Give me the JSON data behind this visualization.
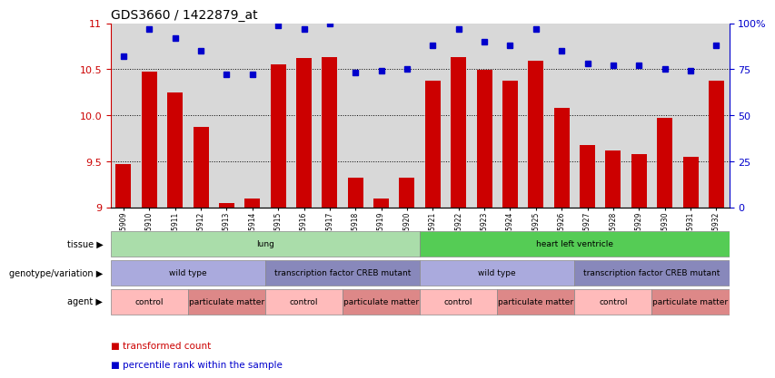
{
  "title": "GDS3660 / 1422879_at",
  "samples": [
    "GSM435909",
    "GSM435910",
    "GSM435911",
    "GSM435912",
    "GSM435913",
    "GSM435914",
    "GSM435915",
    "GSM435916",
    "GSM435917",
    "GSM435918",
    "GSM435919",
    "GSM435920",
    "GSM435921",
    "GSM435922",
    "GSM435923",
    "GSM435924",
    "GSM435925",
    "GSM435926",
    "GSM435927",
    "GSM435928",
    "GSM435929",
    "GSM435930",
    "GSM435931",
    "GSM435932"
  ],
  "bar_values": [
    9.47,
    10.47,
    10.25,
    9.87,
    9.04,
    9.09,
    10.55,
    10.62,
    10.63,
    9.32,
    9.09,
    9.32,
    10.38,
    10.63,
    10.49,
    10.38,
    10.59,
    10.08,
    9.68,
    9.62,
    9.58,
    9.97,
    9.55,
    10.38
  ],
  "blue_values": [
    82,
    97,
    92,
    85,
    72,
    72,
    99,
    97,
    100,
    73,
    74,
    75,
    88,
    97,
    90,
    88,
    97,
    85,
    78,
    77,
    77,
    75,
    74,
    88
  ],
  "ylim": [
    9.0,
    11.0
  ],
  "yticks": [
    9.0,
    9.5,
    10.0,
    10.5,
    11.0
  ],
  "right_yticks": [
    0,
    25,
    50,
    75,
    100
  ],
  "bar_color": "#cc0000",
  "blue_color": "#0000cc",
  "bg_color": "#d8d8d8",
  "tissue_lung_color": "#aaddaa",
  "tissue_heart_color": "#55cc55",
  "genotype_wt_color": "#aaaadd",
  "genotype_mut_color": "#8888bb",
  "agent_ctrl_color": "#ffbbbb",
  "agent_pm_color": "#dd8888",
  "tissue_lung_range": [
    0,
    12
  ],
  "tissue_heart_range": [
    12,
    24
  ],
  "genotype_sections": [
    {
      "label": "wild type",
      "start": 0,
      "end": 6,
      "color": "#aaaadd"
    },
    {
      "label": "transcription factor CREB mutant",
      "start": 6,
      "end": 12,
      "color": "#8888bb"
    },
    {
      "label": "wild type",
      "start": 12,
      "end": 18,
      "color": "#aaaadd"
    },
    {
      "label": "transcription factor CREB mutant",
      "start": 18,
      "end": 24,
      "color": "#8888bb"
    }
  ],
  "agent_sections": [
    {
      "label": "control",
      "start": 0,
      "end": 3,
      "color": "#ffbbbb"
    },
    {
      "label": "particulate matter",
      "start": 3,
      "end": 6,
      "color": "#dd8888"
    },
    {
      "label": "control",
      "start": 6,
      "end": 9,
      "color": "#ffbbbb"
    },
    {
      "label": "particulate matter",
      "start": 9,
      "end": 12,
      "color": "#dd8888"
    },
    {
      "label": "control",
      "start": 12,
      "end": 15,
      "color": "#ffbbbb"
    },
    {
      "label": "particulate matter",
      "start": 15,
      "end": 18,
      "color": "#dd8888"
    },
    {
      "label": "control",
      "start": 18,
      "end": 21,
      "color": "#ffbbbb"
    },
    {
      "label": "particulate matter",
      "start": 21,
      "end": 24,
      "color": "#dd8888"
    }
  ]
}
